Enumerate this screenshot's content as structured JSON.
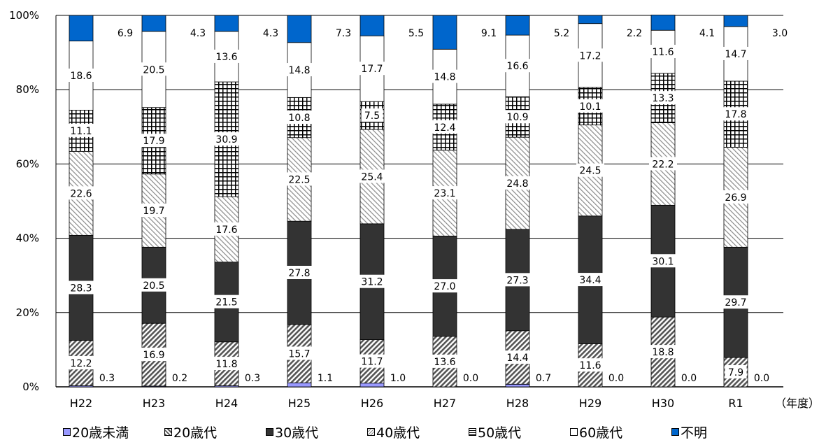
{
  "chart_data": {
    "type": "bar",
    "stacked": "percent",
    "categories": [
      "H22",
      "H23",
      "H24",
      "H25",
      "H26",
      "H27",
      "H28",
      "H29",
      "H30",
      "R1"
    ],
    "x_unit_label": "（年度）",
    "y_ticks": [
      "0%",
      "20%",
      "40%",
      "60%",
      "80%",
      "100%"
    ],
    "ylim": [
      0,
      100
    ],
    "grid": true,
    "legend_position": "bottom",
    "series": [
      {
        "name": "20歳未満",
        "color": "#9999ff",
        "pattern": "solid",
        "values": [
          0.3,
          0.2,
          0.3,
          1.1,
          1.0,
          0.0,
          0.7,
          0.0,
          0.0,
          0.0
        ]
      },
      {
        "name": "20歳代",
        "color": "#595959",
        "pattern": "diagonal-dense",
        "values": [
          12.2,
          16.9,
          11.8,
          15.7,
          11.7,
          13.6,
          14.4,
          11.6,
          18.8,
          7.9
        ]
      },
      {
        "name": "30歳代",
        "color": "#333333",
        "pattern": "solid",
        "values": [
          28.3,
          20.5,
          21.5,
          27.8,
          31.2,
          27.0,
          27.3,
          34.4,
          30.1,
          29.7
        ]
      },
      {
        "name": "40歳代",
        "color": "#808080",
        "pattern": "diagonal-light",
        "values": [
          22.6,
          19.7,
          17.6,
          22.5,
          25.4,
          23.1,
          24.8,
          24.5,
          22.2,
          26.9
        ]
      },
      {
        "name": "50歳代",
        "color": "#000000",
        "pattern": "grid",
        "values": [
          11.1,
          17.9,
          30.9,
          10.8,
          7.5,
          12.4,
          10.9,
          10.1,
          13.3,
          17.8
        ]
      },
      {
        "name": "60歳代",
        "color": "#ffffff",
        "pattern": "solid",
        "values": [
          18.6,
          20.5,
          13.6,
          14.8,
          17.7,
          14.8,
          16.6,
          17.2,
          11.6,
          14.7
        ]
      },
      {
        "name": "不明",
        "color": "#0066cc",
        "pattern": "solid",
        "values": [
          6.9,
          4.3,
          4.3,
          7.3,
          5.5,
          9.1,
          5.2,
          2.2,
          4.1,
          3.0
        ]
      }
    ]
  }
}
